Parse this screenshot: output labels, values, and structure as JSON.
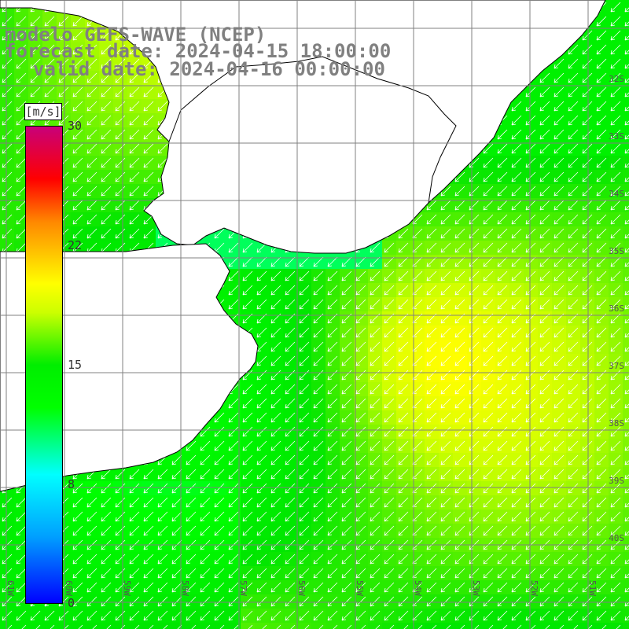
{
  "title": {
    "model": "modelo GEFS-WAVE (NCEP)",
    "forecast": "forecast date: 2024-04-15 18:00:00",
    "valid": "valid date: 2024-04-16 00:00:00"
  },
  "colorbar": {
    "unit": "[m/s]",
    "ticks": [
      "30",
      "22",
      "15",
      "8",
      "0"
    ],
    "min": 0,
    "max": 30
  },
  "lat_labels": [
    "32S",
    "33S",
    "34S",
    "35S",
    "36S",
    "37S",
    "38S",
    "39S",
    "40S"
  ],
  "lon_labels": [
    "61W",
    "60W",
    "59W",
    "58W",
    "57W",
    "56W",
    "55W",
    "54W",
    "53W",
    "52W",
    "51W"
  ],
  "colors": {
    "land": "#ffffff",
    "coast": "#000000",
    "grid": "#808080",
    "arrow": "#ffffff"
  },
  "wind_direction": "from north-east"
}
